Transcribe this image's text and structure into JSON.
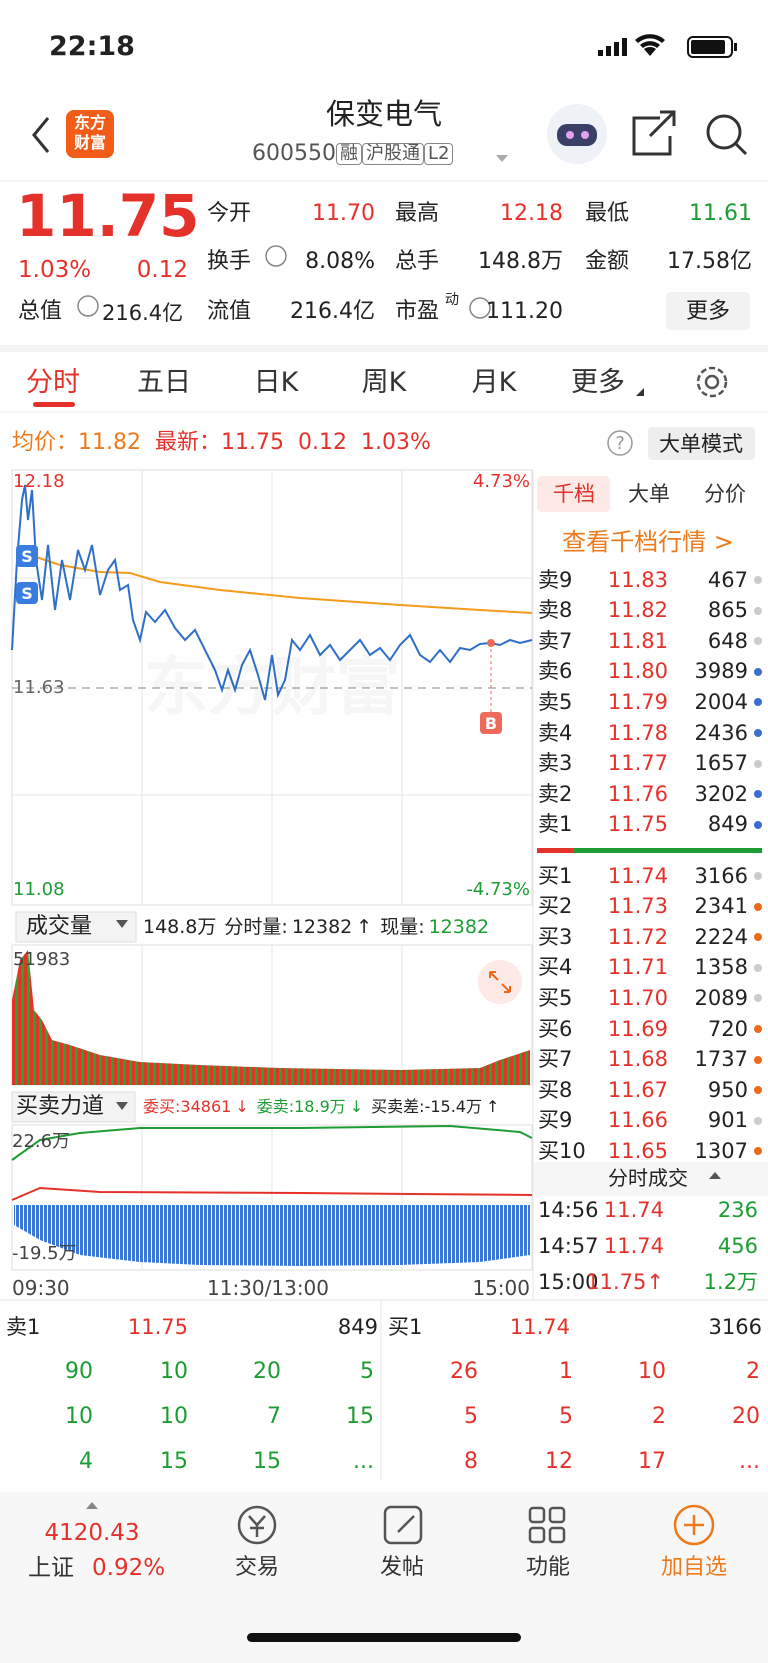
{
  "status_bar": {
    "time": "22:18"
  },
  "header": {
    "logo_line1": "东方",
    "logo_line2": "财富",
    "title": "保变电气",
    "code": "600550",
    "tags": [
      "融",
      "沪股通",
      "L2"
    ]
  },
  "quote": {
    "price": "11.75",
    "change_pct": "1.03%",
    "change": "0.12",
    "total_label": "总值",
    "total_value": "216.4亿",
    "stats": [
      {
        "label": "今开",
        "value": "11.70",
        "color": "#e4322b"
      },
      {
        "label": "最高",
        "value": "12.18",
        "color": "#e4322b"
      },
      {
        "label": "最低",
        "value": "11.61",
        "color": "#1c9d33"
      },
      {
        "label": "换手",
        "value": "8.08%",
        "color": "#222222"
      },
      {
        "label": "总手",
        "value": "148.8万",
        "color": "#222222"
      },
      {
        "label": "金额",
        "value": "17.58亿",
        "color": "#222222"
      },
      {
        "label": "流值",
        "value": "216.4亿",
        "color": "#222222"
      },
      {
        "label": "市盈",
        "sup": "动",
        "value": "111.20",
        "color": "#222222"
      }
    ],
    "more": "更多"
  },
  "tabs": {
    "items": [
      "分时",
      "五日",
      "日K",
      "周K",
      "月K",
      "更多"
    ],
    "active": 0
  },
  "info_bar": {
    "avg_label": "均价：",
    "avg": "11.82",
    "last_label": "最新：",
    "last": "11.75",
    "change": "0.12",
    "change_pct": "1.03%",
    "help": "?",
    "mode_button": "大单模式"
  },
  "price_chart": {
    "high": "12.18",
    "high_pct": "4.73%",
    "prev_close": "11.63",
    "low": "11.08",
    "low_pct": "-4.73%",
    "watermark": "东方财富",
    "sell_marker": "S",
    "buy_marker": "B"
  },
  "volume_panel": {
    "selector": "成交量",
    "total": "148.8万",
    "minute_label": "分时量:",
    "minute": "12382",
    "arrow": "↑",
    "now_label": "现量:",
    "now": "12382",
    "max": "51983"
  },
  "force_panel": {
    "selector": "买卖力道",
    "bid_label": "委买:",
    "bid": "34861",
    "bid_arrow": "↓",
    "ask_label": "委卖:",
    "ask": "18.9万",
    "ask_arrow": "↓",
    "diff_label": "买卖差:",
    "diff": "-15.4万",
    "diff_arrow": "↑",
    "max": "22.6万",
    "min": "-19.5万"
  },
  "time_axis": [
    "09:30",
    "11:30/13:00",
    "15:00"
  ],
  "depth": {
    "tabs": [
      "千档",
      "大单",
      "分价"
    ],
    "active": 0,
    "link": "查看千档行情 >",
    "sell": [
      {
        "label": "卖9",
        "price": "11.83",
        "volume": 467,
        "dot": "#cccccc"
      },
      {
        "label": "卖8",
        "price": "11.82",
        "volume": 865,
        "dot": "#cccccc"
      },
      {
        "label": "卖7",
        "price": "11.81",
        "volume": 648,
        "dot": "#cccccc"
      },
      {
        "label": "卖6",
        "price": "11.80",
        "volume": 3989,
        "dot": "#3a6fd0"
      },
      {
        "label": "卖5",
        "price": "11.79",
        "volume": 2004,
        "dot": "#3a6fd0"
      },
      {
        "label": "卖4",
        "price": "11.78",
        "volume": 2436,
        "dot": "#3a6fd0"
      },
      {
        "label": "卖3",
        "price": "11.77",
        "volume": 1657,
        "dot": "#cccccc"
      },
      {
        "label": "卖2",
        "price": "11.76",
        "volume": 3202,
        "dot": "#3a6fd0"
      },
      {
        "label": "卖1",
        "price": "11.75",
        "volume": 849,
        "dot": "#3a6fd0"
      }
    ],
    "buy": [
      {
        "label": "买1",
        "price": "11.74",
        "volume": 3166,
        "dot": "#cccccc"
      },
      {
        "label": "买2",
        "price": "11.73",
        "volume": 2341,
        "dot": "#ee6a1b"
      },
      {
        "label": "买3",
        "price": "11.72",
        "volume": 2224,
        "dot": "#ee6a1b"
      },
      {
        "label": "买4",
        "price": "11.71",
        "volume": 1358,
        "dot": "#cccccc"
      },
      {
        "label": "买5",
        "price": "11.70",
        "volume": 2089,
        "dot": "#cccccc"
      },
      {
        "label": "买6",
        "price": "11.69",
        "volume": 720,
        "dot": "#ee6a1b"
      },
      {
        "label": "买7",
        "price": "11.68",
        "volume": 1737,
        "dot": "#ee6a1b"
      },
      {
        "label": "买8",
        "price": "11.67",
        "volume": 950,
        "dot": "#ee6a1b"
      },
      {
        "label": "买9",
        "price": "11.66",
        "volume": 901,
        "dot": "#cccccc"
      },
      {
        "label": "买10",
        "price": "11.65",
        "volume": 1307,
        "dot": "#ee6a1b"
      }
    ]
  },
  "trades": {
    "title": "分时成交",
    "rows": [
      {
        "time": "14:56",
        "price": "11.74",
        "volume": "236"
      },
      {
        "time": "14:57",
        "price": "11.74",
        "volume": "456"
      },
      {
        "time": "15:00",
        "price": "11.75↑",
        "volume": "1.2万"
      }
    ]
  },
  "level1": {
    "sell": {
      "label": "卖1",
      "price": "11.75",
      "volume": "849",
      "orders": [
        "90",
        "10",
        "20",
        "5",
        "10",
        "10",
        "7",
        "15",
        "4",
        "15",
        "15",
        "..."
      ]
    },
    "buy": {
      "label": "买1",
      "price": "11.74",
      "volume": "3166",
      "orders": [
        "26",
        "1",
        "10",
        "2",
        "5",
        "5",
        "2",
        "20",
        "8",
        "12",
        "17",
        "..."
      ]
    }
  },
  "bottom_nav": {
    "index_value": "4120.43",
    "index_name": "上证",
    "index_change": "0.92%",
    "items": [
      "交易",
      "发帖",
      "功能",
      "加自选"
    ]
  }
}
